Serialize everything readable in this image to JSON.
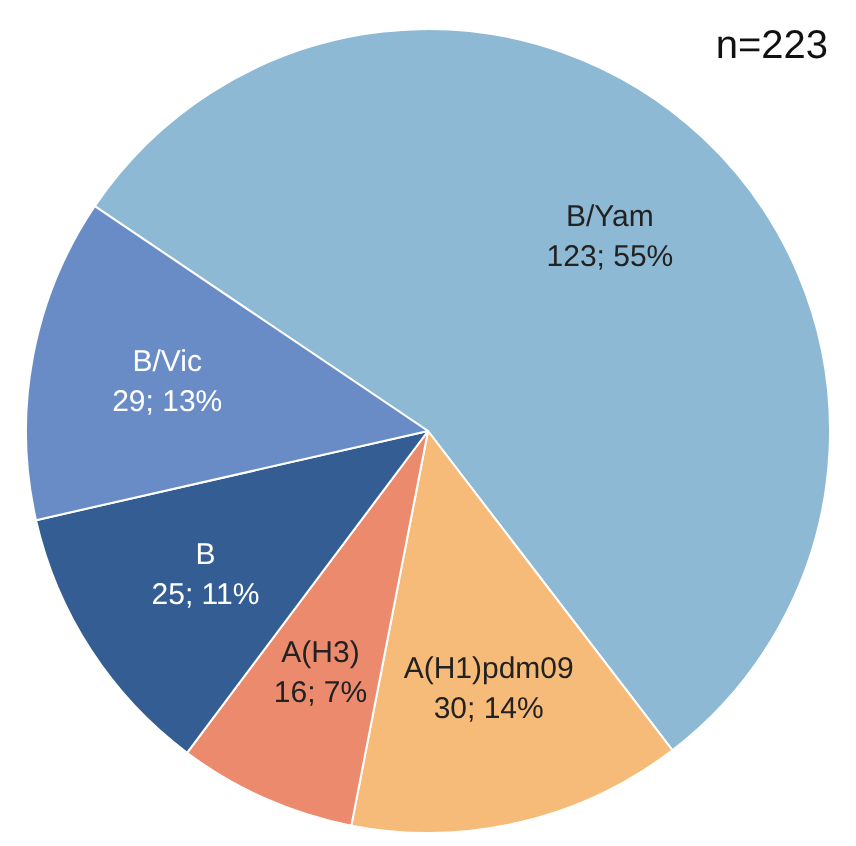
{
  "chart_data": {
    "type": "pie",
    "categories": [
      "B/Yam",
      "A(H1)pdm09",
      "A(H3)",
      "B",
      "B/Vic"
    ],
    "values": [
      123,
      30,
      16,
      25,
      29
    ],
    "colors": [
      "#8db9d4",
      "#f6bb78",
      "#ec8a6e",
      "#345e93",
      "#6a8cc6"
    ],
    "value_labels": [
      "123; 55%",
      "30; 14%",
      "16; 7%",
      "25; 11%",
      "29; 13%"
    ],
    "annotations": [
      "n=223"
    ],
    "legend": false
  }
}
